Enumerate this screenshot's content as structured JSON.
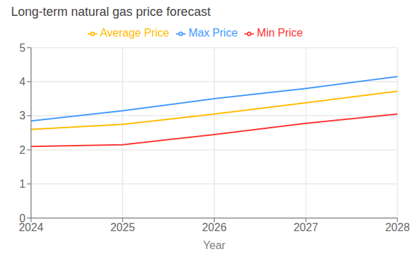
{
  "chart_data": {
    "type": "line",
    "title": "Long-term natural gas price forecast",
    "xlabel": "Year",
    "x": [
      2024,
      2025,
      2026,
      2027,
      2028
    ],
    "xlim": [
      2024,
      2028
    ],
    "xticks": [
      2024,
      2025,
      2026,
      2027,
      2028
    ],
    "ylim": [
      0,
      5
    ],
    "yticks": [
      0,
      1,
      2,
      3,
      4,
      5
    ],
    "grid": true,
    "legend": "top",
    "series": [
      {
        "name": "Max Price",
        "color": "#4499FF",
        "values": [
          2.85,
          3.15,
          3.5,
          3.8,
          4.15
        ]
      },
      {
        "name": "Min Price",
        "color": "#FF3333",
        "values": [
          2.1,
          2.15,
          2.45,
          2.78,
          3.05
        ]
      },
      {
        "name": "Average Price",
        "color": "#FFBB00",
        "values": [
          2.6,
          2.75,
          3.05,
          3.38,
          3.72
        ]
      }
    ]
  }
}
